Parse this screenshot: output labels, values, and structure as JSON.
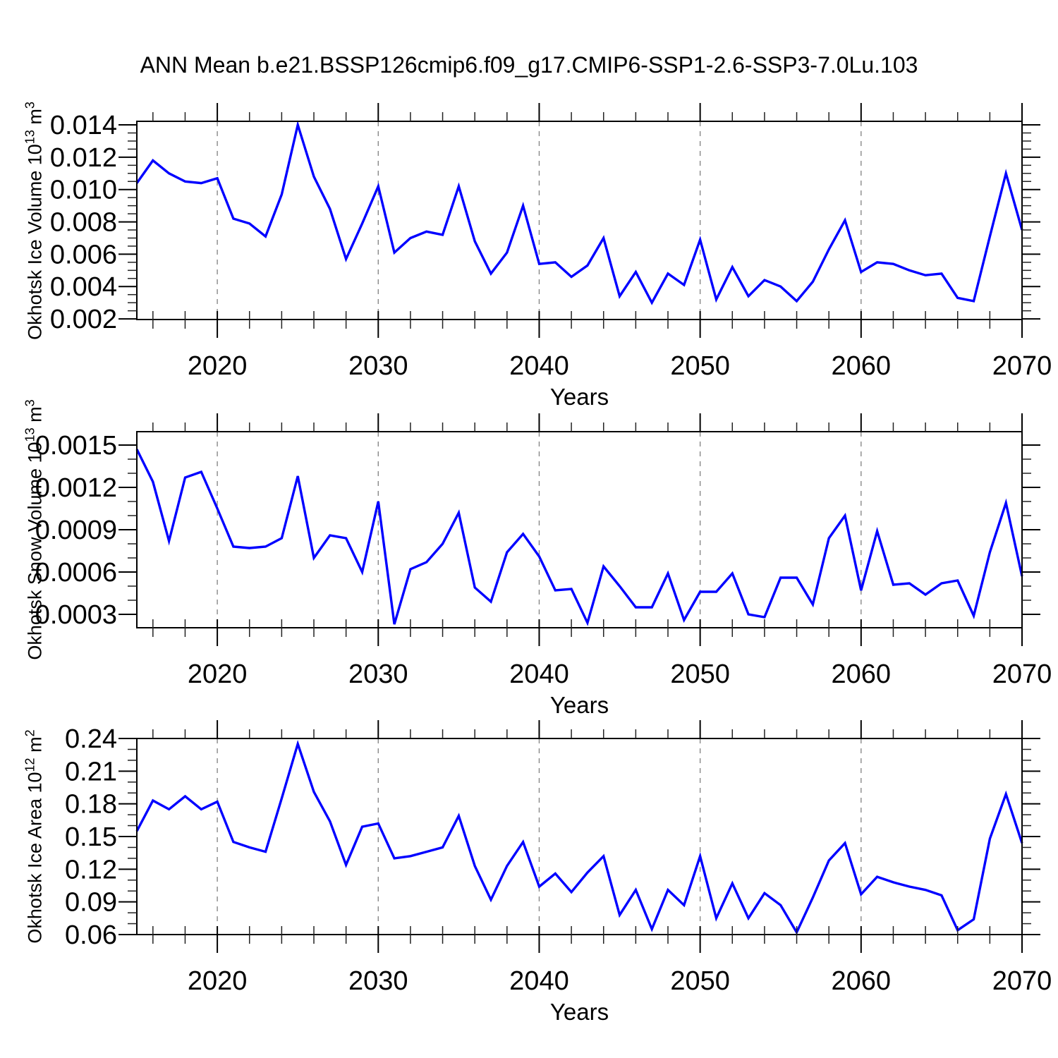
{
  "title": "ANN Mean b.e21.BSSP126cmip6.f09_g17.CMIP6-SSP1-2.6-SSP3-7.0Lu.103",
  "colors": {
    "line": "#0000ff",
    "grid": "#888888",
    "axis": "#000000"
  },
  "chart_data": [
    {
      "type": "line",
      "name": "okhotsk-ice-volume",
      "ylabel_base": "Okhotsk Ice Volume 10",
      "ylabel_exp": "13",
      "ylabel_unit": " m",
      "ylabel_unit_exp": "3",
      "xlabel": "Years",
      "legend": "none",
      "grid": "dashed-vertical-at-decades",
      "xlim": [
        2015,
        2070
      ],
      "ylim": [
        0.00196,
        0.01422
      ],
      "x_major_ticks": [
        2020,
        2030,
        2040,
        2050,
        2060,
        2070
      ],
      "x_tick_labels": [
        "2020",
        "2030",
        "2040",
        "2050",
        "2060",
        "2070"
      ],
      "x_minor_step": 2,
      "gridline_years": [
        2020,
        2030,
        2040,
        2050,
        2060
      ],
      "y_major_ticks": [
        0.002,
        0.004,
        0.006,
        0.008,
        0.01,
        0.012,
        0.014
      ],
      "y_tick_labels": [
        "0.002",
        "0.004",
        "0.006",
        "0.008",
        "0.010",
        "0.012",
        "0.014"
      ],
      "y_minor_step": 0.0005,
      "years": [
        2015,
        2016,
        2017,
        2018,
        2019,
        2020,
        2021,
        2022,
        2023,
        2024,
        2025,
        2026,
        2027,
        2028,
        2029,
        2030,
        2031,
        2032,
        2033,
        2034,
        2035,
        2036,
        2037,
        2038,
        2039,
        2040,
        2041,
        2042,
        2043,
        2044,
        2045,
        2046,
        2047,
        2048,
        2049,
        2050,
        2051,
        2052,
        2053,
        2054,
        2055,
        2056,
        2057,
        2058,
        2059,
        2060,
        2061,
        2062,
        2063,
        2064,
        2065,
        2066,
        2067,
        2068,
        2069,
        2070
      ],
      "values": [
        0.0104,
        0.0118,
        0.011,
        0.0105,
        0.0104,
        0.0107,
        0.0082,
        0.0079,
        0.0071,
        0.0097,
        0.014,
        0.0108,
        0.0088,
        0.0057,
        0.0079,
        0.0102,
        0.0061,
        0.007,
        0.0074,
        0.0072,
        0.0102,
        0.0068,
        0.0048,
        0.0061,
        0.009,
        0.0054,
        0.0055,
        0.0046,
        0.0053,
        0.007,
        0.0034,
        0.0049,
        0.003,
        0.0048,
        0.0041,
        0.0069,
        0.0032,
        0.0052,
        0.0034,
        0.0044,
        0.004,
        0.0031,
        0.0043,
        0.0063,
        0.0081,
        0.0049,
        0.0055,
        0.0054,
        0.005,
        0.0047,
        0.0048,
        0.0033,
        0.0031,
        0.0071,
        0.011,
        0.0075
      ]
    },
    {
      "type": "line",
      "name": "okhotsk-snow-volume",
      "ylabel_base": "Okhotsk Snow Volume 10",
      "ylabel_exp": "13",
      "ylabel_unit": " m",
      "ylabel_unit_exp": "3",
      "xlabel": "Years",
      "legend": "none",
      "grid": "dashed-vertical-at-decades",
      "xlim": [
        2015,
        2070
      ],
      "ylim": [
        0.000205,
        0.001595
      ],
      "x_major_ticks": [
        2020,
        2030,
        2040,
        2050,
        2060,
        2070
      ],
      "x_tick_labels": [
        "2020",
        "2030",
        "2040",
        "2050",
        "2060",
        "2070"
      ],
      "x_minor_step": 2,
      "gridline_years": [
        2020,
        2030,
        2040,
        2050,
        2060
      ],
      "y_major_ticks": [
        0.0003,
        0.0006,
        0.0009,
        0.0012,
        0.0015
      ],
      "y_tick_labels": [
        "0.0003",
        "0.0006",
        "0.0009",
        "0.0012",
        "0.0015"
      ],
      "y_minor_step": 0.0001,
      "years": [
        2015,
        2016,
        2017,
        2018,
        2019,
        2020,
        2021,
        2022,
        2023,
        2024,
        2025,
        2026,
        2027,
        2028,
        2029,
        2030,
        2031,
        2032,
        2033,
        2034,
        2035,
        2036,
        2037,
        2038,
        2039,
        2040,
        2041,
        2042,
        2043,
        2044,
        2045,
        2046,
        2047,
        2048,
        2049,
        2050,
        2051,
        2052,
        2053,
        2054,
        2055,
        2056,
        2057,
        2058,
        2059,
        2060,
        2061,
        2062,
        2063,
        2064,
        2065,
        2066,
        2067,
        2068,
        2069,
        2070
      ],
      "values": [
        0.00147,
        0.00124,
        0.00082,
        0.00127,
        0.00131,
        0.00105,
        0.00078,
        0.00077,
        0.00078,
        0.00084,
        0.00128,
        0.0007,
        0.00086,
        0.00084,
        0.0006,
        0.0011,
        0.00023,
        0.00062,
        0.00067,
        0.0008,
        0.00102,
        0.00049,
        0.00039,
        0.00074,
        0.00087,
        0.00071,
        0.00047,
        0.00048,
        0.00024,
        0.00064,
        0.0005,
        0.00035,
        0.00035,
        0.00059,
        0.00026,
        0.00046,
        0.00046,
        0.00059,
        0.0003,
        0.00028,
        0.00056,
        0.00056,
        0.00037,
        0.00084,
        0.001,
        0.00047,
        0.00089,
        0.00051,
        0.00052,
        0.00044,
        0.00052,
        0.00054,
        0.00029,
        0.00074,
        0.00109,
        0.00057
      ]
    },
    {
      "type": "line",
      "name": "okhotsk-ice-area",
      "ylabel_base": "Okhotsk Ice Area 10",
      "ylabel_exp": "12",
      "ylabel_unit": " m",
      "ylabel_unit_exp": "2",
      "xlabel": "Years",
      "legend": "none",
      "grid": "dashed-vertical-at-decades",
      "xlim": [
        2015,
        2070
      ],
      "ylim": [
        0.06,
        0.24
      ],
      "x_major_ticks": [
        2020,
        2030,
        2040,
        2050,
        2060,
        2070
      ],
      "x_tick_labels": [
        "2020",
        "2030",
        "2040",
        "2050",
        "2060",
        "2070"
      ],
      "x_minor_step": 2,
      "gridline_years": [
        2020,
        2030,
        2040,
        2050,
        2060
      ],
      "y_major_ticks": [
        0.06,
        0.09,
        0.12,
        0.15,
        0.18,
        0.21,
        0.24
      ],
      "y_tick_labels": [
        "0.06",
        "0.09",
        "0.12",
        "0.15",
        "0.18",
        "0.21",
        "0.24"
      ],
      "y_minor_step": 0.01,
      "years": [
        2015,
        2016,
        2017,
        2018,
        2019,
        2020,
        2021,
        2022,
        2023,
        2024,
        2025,
        2026,
        2027,
        2028,
        2029,
        2030,
        2031,
        2032,
        2033,
        2034,
        2035,
        2036,
        2037,
        2038,
        2039,
        2040,
        2041,
        2042,
        2043,
        2044,
        2045,
        2046,
        2047,
        2048,
        2049,
        2050,
        2051,
        2052,
        2053,
        2054,
        2055,
        2056,
        2057,
        2058,
        2059,
        2060,
        2061,
        2062,
        2063,
        2064,
        2065,
        2066,
        2067,
        2068,
        2069,
        2070
      ],
      "values": [
        0.155,
        0.183,
        0.175,
        0.187,
        0.175,
        0.182,
        0.145,
        0.14,
        0.136,
        0.185,
        0.235,
        0.191,
        0.164,
        0.124,
        0.159,
        0.162,
        0.13,
        0.132,
        0.136,
        0.14,
        0.169,
        0.123,
        0.092,
        0.123,
        0.145,
        0.104,
        0.116,
        0.099,
        0.117,
        0.132,
        0.078,
        0.101,
        0.065,
        0.101,
        0.087,
        0.132,
        0.075,
        0.107,
        0.075,
        0.098,
        0.087,
        0.062,
        0.094,
        0.128,
        0.144,
        0.097,
        0.113,
        0.108,
        0.104,
        0.101,
        0.096,
        0.064,
        0.074,
        0.148,
        0.189,
        0.144
      ]
    }
  ]
}
